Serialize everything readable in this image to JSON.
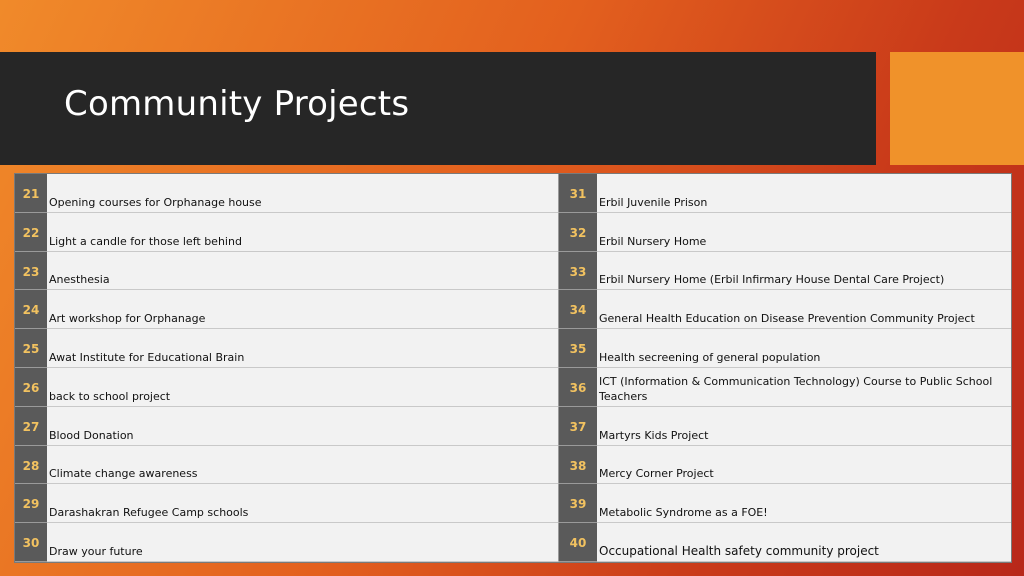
{
  "title": "Community Projects",
  "colors": {
    "background_gradient": [
      "#f08a2a",
      "#c93a1a"
    ],
    "title_bar": "#262626",
    "accent": "#f0922a",
    "number_cell": "#5a5a5a",
    "number_text": "#f2c260"
  },
  "rows": [
    {
      "n1": "21",
      "t1": "Opening courses for Orphanage house",
      "n2": "31",
      "t2": "Erbil Juvenile Prison"
    },
    {
      "n1": "22",
      "t1": "Light a candle for those left behind",
      "n2": "32",
      "t2": "Erbil Nursery Home"
    },
    {
      "n1": "23",
      "t1": "Anesthesia",
      "n2": "33",
      "t2": "Erbil Nursery Home (Erbil Infirmary House Dental Care Project)"
    },
    {
      "n1": "24",
      "t1": "Art workshop for Orphanage",
      "n2": "34",
      "t2": "General Health Education on Disease Prevention Community Project"
    },
    {
      "n1": "25",
      "t1": "Awat Institute for Educational Brain",
      "n2": "35",
      "t2": "Health secreening of general population"
    },
    {
      "n1": "26",
      "t1": "back to school project",
      "n2": "36",
      "t2": "ICT (Information & Communication Technology) Course to Public School Teachers"
    },
    {
      "n1": "27",
      "t1": "Blood Donation",
      "n2": "37",
      "t2": "Martyrs Kids Project"
    },
    {
      "n1": "28",
      "t1": "Climate change awareness",
      "n2": "38",
      "t2": "Mercy Corner Project"
    },
    {
      "n1": "29",
      "t1": "Darashakran Refugee Camp schools",
      "n2": "39",
      "t2": "Metabolic Syndrome as a FOE!"
    },
    {
      "n1": "30",
      "t1": "Draw your future",
      "n2": "40",
      "t2": "Occupational Health safety community project"
    }
  ]
}
